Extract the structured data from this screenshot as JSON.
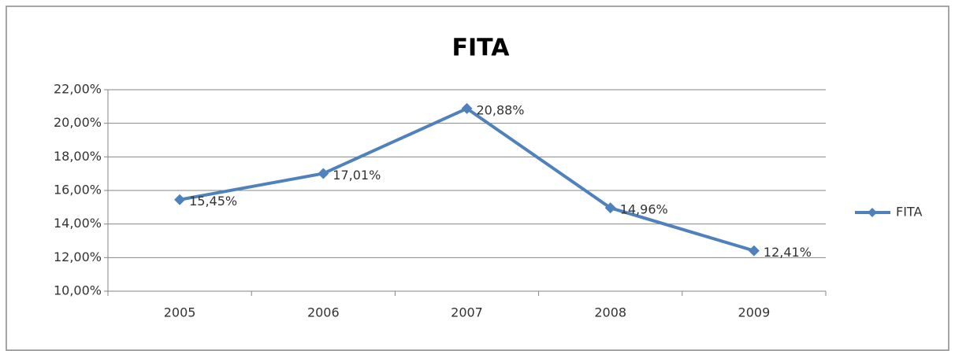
{
  "chart_data": {
    "type": "line",
    "title": "FITA",
    "categories": [
      "2005",
      "2006",
      "2007",
      "2008",
      "2009"
    ],
    "series": [
      {
        "name": "FITA",
        "color": "#4f81bd",
        "values": [
          15.45,
          17.01,
          20.88,
          14.96,
          12.41
        ],
        "value_labels": [
          "15,45%",
          "17,01%",
          "20,88%",
          "14,96%",
          "12,41%"
        ]
      }
    ],
    "ylim": [
      10,
      22
    ],
    "yticks": [
      {
        "value": 10,
        "label": "10,00%"
      },
      {
        "value": 12,
        "label": "12,00%"
      },
      {
        "value": 14,
        "label": "14,00%"
      },
      {
        "value": 16,
        "label": "16,00%"
      },
      {
        "value": 18,
        "label": "18,00%"
      },
      {
        "value": 20,
        "label": "20,00%"
      },
      {
        "value": 22,
        "label": "22,00%"
      }
    ],
    "grid": true,
    "legend": "right"
  }
}
